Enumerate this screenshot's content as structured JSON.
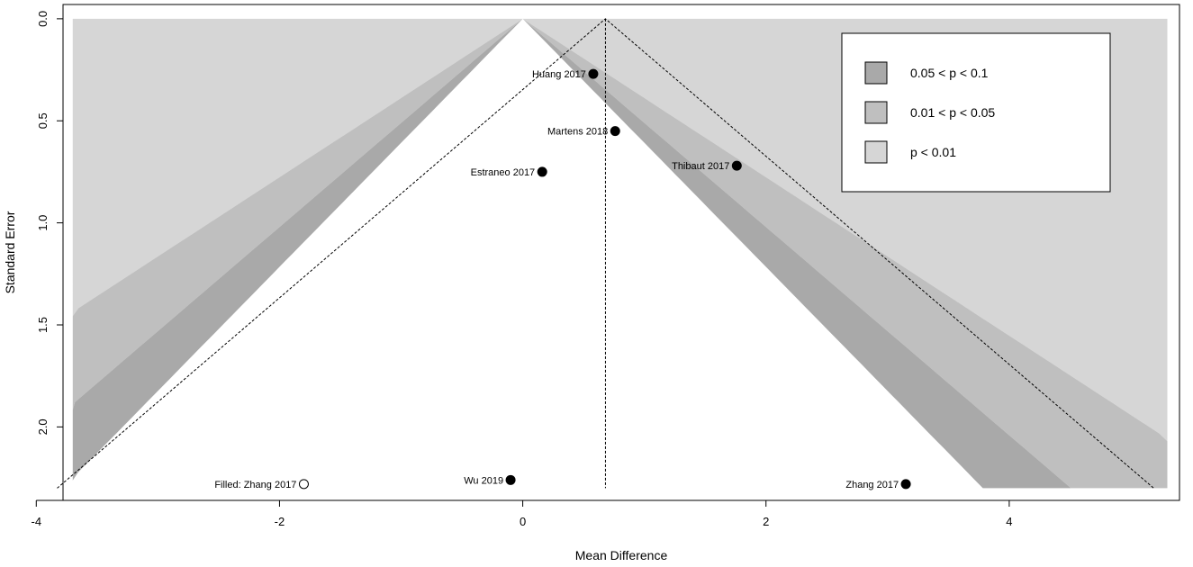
{
  "chart_data": {
    "type": "scatter",
    "subtype": "contour-enhanced funnel plot",
    "xlabel": "Mean Difference",
    "ylabel": "Standard Error",
    "xlim": [
      -3.78,
      5.4
    ],
    "ylim": [
      2.36,
      -0.07
    ],
    "y_axis_reversed": true,
    "x_ticks": [
      -4,
      -2,
      0,
      2,
      4
    ],
    "x_tick_labels": [
      "-4",
      "-2",
      "0",
      "2",
      "4"
    ],
    "y_ticks": [
      0.0,
      0.5,
      1.0,
      1.5,
      2.0
    ],
    "y_tick_labels": [
      "0.0",
      "0.5",
      "1.0",
      "1.5",
      "2.0"
    ],
    "grid": false,
    "funnel_center": 0,
    "pooled_estimate": 0.68,
    "se_max": 2.3,
    "region_x_extent": [
      -3.7,
      5.3
    ],
    "contours": [
      {
        "label": "0.05 < p < 0.1",
        "z_low": 1.645,
        "z_high": 1.96,
        "color": "#a9a9a9"
      },
      {
        "label": "0.01 < p < 0.05",
        "z_low": 1.96,
        "z_high": 2.576,
        "color": "#bfbfbf"
      },
      {
        "label": "p < 0.01",
        "z_low": 2.576,
        "z_high": null,
        "color": "#d6d6d6"
      }
    ],
    "legend": {
      "placement": "top-right"
    },
    "points": [
      {
        "label": "Huang 2017",
        "x": 0.58,
        "y": 0.27,
        "filled": true
      },
      {
        "label": "Martens 2018",
        "x": 0.76,
        "y": 0.55,
        "filled": true
      },
      {
        "label": "Thibaut 2017",
        "x": 1.76,
        "y": 0.72,
        "filled": true
      },
      {
        "label": "Estraneo 2017",
        "x": 0.16,
        "y": 0.75,
        "filled": true
      },
      {
        "label": "Wu 2019",
        "x": -0.1,
        "y": 2.26,
        "filled": true
      },
      {
        "label": "Zhang 2017",
        "x": 3.15,
        "y": 2.28,
        "filled": true
      },
      {
        "label": "Filled: Zhang 2017",
        "x": -1.8,
        "y": 2.28,
        "filled": false
      }
    ]
  }
}
